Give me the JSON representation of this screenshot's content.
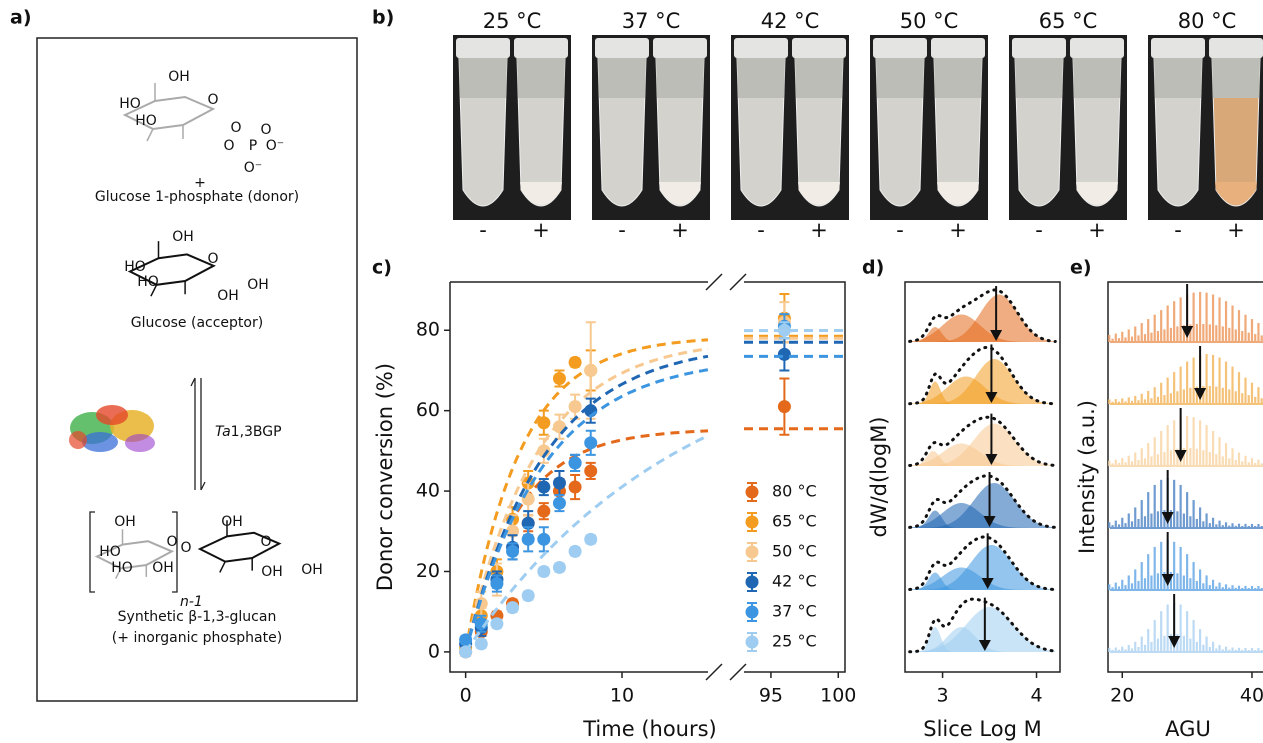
{
  "panels": {
    "a": "a)",
    "b": "b)",
    "c": "c)",
    "d": "d)",
    "e": "e)"
  },
  "scheme": {
    "donor_atoms": [
      "OH",
      "HO",
      "HO",
      "O",
      "O",
      "O",
      "P",
      "O",
      "O⁻",
      "O⁻"
    ],
    "donor": "Glucose 1-phosphate (donor)",
    "plus": "+",
    "acceptor_atoms": [
      "OH",
      "HO",
      "HO",
      "O",
      "OH",
      "OH"
    ],
    "acceptor": "Glucose (acceptor)",
    "enzyme_italic": "Ta",
    "enzyme": "1,3BGP",
    "product_atoms": [
      "OH",
      "HO",
      "HO",
      "O",
      "OH",
      "O",
      "OH",
      "O",
      "OH",
      "OH"
    ],
    "repeat": "n-1",
    "product": "Synthetic β-1,3-glucan",
    "byproduct": "(+ inorganic phosphate)"
  },
  "photos": {
    "temperatures": [
      "25 °C",
      "37 °C",
      "42 °C",
      "50 °C",
      "65 °C",
      "80 °C"
    ],
    "signs": [
      "-",
      "+"
    ]
  },
  "chart_data": [
    {
      "type": "line",
      "xlabel": "Time (hours)",
      "ylabel": "Donor conversion (%)",
      "xlim": [
        -1,
        100.5
      ],
      "xbreak": [
        15.5,
        93
      ],
      "xticks": [
        0,
        10,
        95,
        100
      ],
      "ylim": [
        -5,
        92
      ],
      "yticks": [
        0,
        20,
        40,
        60,
        80
      ],
      "legend": "lower right",
      "x": [
        0,
        1,
        2,
        3,
        4,
        5,
        6,
        7,
        8,
        96
      ],
      "series": [
        {
          "name": "80 °C",
          "color": "#e4691b",
          "values": [
            0,
            5,
            9,
            12,
            32,
            35,
            40,
            41,
            45,
            61
          ],
          "errors": [
            1,
            1,
            1,
            1,
            2,
            2,
            3,
            3,
            2,
            7
          ],
          "fit": {
            "plateau": 55.5,
            "rate": 0.3
          }
        },
        {
          "name": "65 °C",
          "color": "#f39c1f",
          "values": [
            1,
            9,
            20,
            33,
            42,
            57,
            68,
            72,
            70,
            83
          ],
          "errors": [
            1,
            2,
            3,
            3,
            3,
            3,
            2,
            1,
            5,
            6
          ],
          "fit": {
            "plateau": 78.5,
            "rate": 0.29
          }
        },
        {
          "name": "50 °C",
          "color": "#f7c990",
          "values": [
            2,
            12,
            18,
            30,
            38,
            50,
            56,
            61,
            70,
            82
          ],
          "errors": [
            1,
            3,
            4,
            4,
            4,
            3,
            3,
            3,
            12,
            5
          ],
          "fit": {
            "plateau": 78,
            "rate": 0.22
          }
        },
        {
          "name": "42 °C",
          "color": "#1f66b3",
          "values": [
            2,
            6,
            18,
            26,
            32,
            41,
            42,
            47,
            60,
            74
          ],
          "errors": [
            1,
            2,
            2,
            3,
            3,
            2,
            3,
            2,
            3,
            4
          ],
          "fit": {
            "plateau": 77,
            "rate": 0.2
          }
        },
        {
          "name": "37 °C",
          "color": "#3c95e0",
          "values": [
            3,
            7,
            17,
            25,
            28,
            28,
            37,
            47,
            52,
            81
          ],
          "errors": [
            1,
            2,
            2,
            2,
            3,
            3,
            2,
            2,
            3,
            3
          ],
          "fit": {
            "plateau": 73.5,
            "rate": 0.2
          }
        },
        {
          "name": "25 °C",
          "color": "#9fcdf1",
          "values": [
            0,
            2,
            7,
            11,
            14,
            20,
            21,
            25,
            28,
            80
          ],
          "errors": [
            1,
            1,
            1,
            1,
            1,
            1,
            1,
            1,
            1,
            2
          ],
          "fit": {
            "plateau": 80,
            "rate": 0.072
          }
        }
      ]
    },
    {
      "type": "area",
      "xlabel": "Slice Log M",
      "ylabel": "dW/d(logM)",
      "xlim": [
        2.6,
        4.25
      ],
      "xticks": [
        3,
        4
      ],
      "rows": [
        {
          "color": "#e4691b",
          "arrow": 3.57,
          "components": [
            {
              "center": 2.92,
              "width": 0.07,
              "height": 0.3
            },
            {
              "center": 3.2,
              "width": 0.2,
              "height": 0.55
            },
            {
              "center": 3.6,
              "width": 0.2,
              "height": 0.95
            }
          ]
        },
        {
          "color": "#f39c1f",
          "arrow": 3.52,
          "components": [
            {
              "center": 2.92,
              "width": 0.06,
              "height": 0.45
            },
            {
              "center": 3.25,
              "width": 0.2,
              "height": 0.55
            },
            {
              "center": 3.55,
              "width": 0.2,
              "height": 0.9
            }
          ]
        },
        {
          "color": "#f7c990",
          "arrow": 3.52,
          "components": [
            {
              "center": 2.9,
              "width": 0.07,
              "height": 0.3
            },
            {
              "center": 3.2,
              "width": 0.2,
              "height": 0.45
            },
            {
              "center": 3.55,
              "width": 0.22,
              "height": 0.85
            }
          ]
        },
        {
          "color": "#1f66b3",
          "arrow": 3.5,
          "components": [
            {
              "center": 2.92,
              "width": 0.07,
              "height": 0.35
            },
            {
              "center": 3.2,
              "width": 0.2,
              "height": 0.5
            },
            {
              "center": 3.55,
              "width": 0.22,
              "height": 0.9
            }
          ]
        },
        {
          "color": "#3c95e0",
          "arrow": 3.48,
          "components": [
            {
              "center": 2.92,
              "width": 0.07,
              "height": 0.35
            },
            {
              "center": 3.2,
              "width": 0.2,
              "height": 0.45
            },
            {
              "center": 3.52,
              "width": 0.22,
              "height": 0.9
            }
          ]
        },
        {
          "color": "#9fcdf1",
          "arrow": 3.45,
          "components": [
            {
              "center": 2.92,
              "width": 0.06,
              "height": 0.5
            },
            {
              "center": 3.2,
              "width": 0.15,
              "height": 0.5
            },
            {
              "center": 3.5,
              "width": 0.25,
              "height": 0.9
            }
          ]
        }
      ]
    },
    {
      "type": "bar",
      "xlabel": "AGU",
      "ylabel": "Intensity (a.u.)",
      "xlim": [
        17.8,
        41.7
      ],
      "xticks": [
        20,
        40
      ],
      "rows": [
        {
          "color": "#f0a978",
          "arrow": 30,
          "center": 32,
          "width": 6
        },
        {
          "color": "#f5c27a",
          "arrow": 32,
          "center": 33,
          "width": 5
        },
        {
          "color": "#f9dcb3",
          "arrow": 29,
          "center": 30,
          "width": 4.5
        },
        {
          "color": "#6f9bd0",
          "arrow": 27,
          "center": 27,
          "width": 3.5
        },
        {
          "color": "#7fb6ea",
          "arrow": 27,
          "center": 27,
          "width": 3.5
        },
        {
          "color": "#bcdaf4",
          "arrow": 28,
          "center": 28,
          "width": 3
        }
      ]
    }
  ]
}
